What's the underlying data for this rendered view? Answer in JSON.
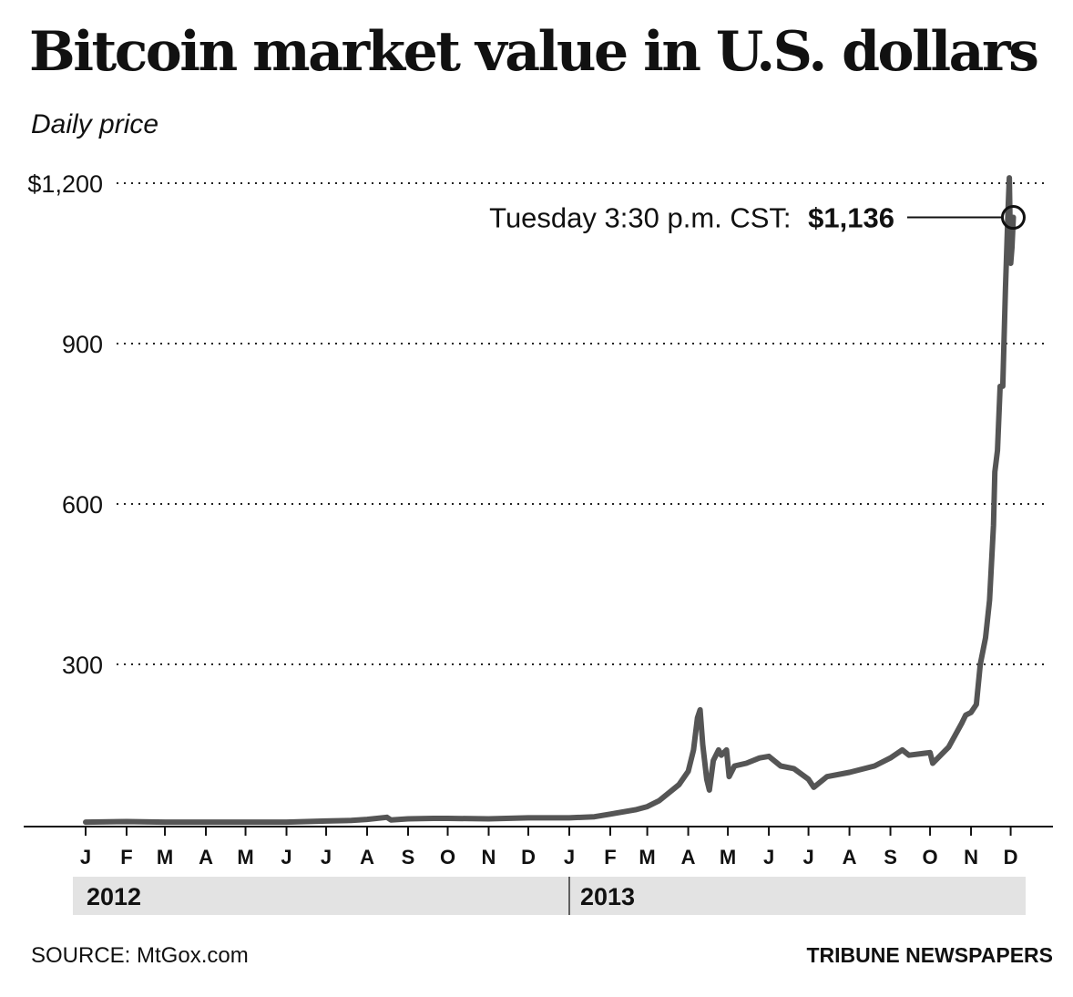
{
  "title": "Bitcoin market value in U.S. dollars",
  "subtitle": "Daily price",
  "source": "SOURCE: MtGox.com",
  "credit": "TRIBUNE NEWSPAPERS",
  "annotation": {
    "label": "Tuesday 3:30 p.m. CST:",
    "value": "$1,136"
  },
  "colors": {
    "line": "#555555",
    "text": "#111111",
    "year_band": "#e3e3e3",
    "grid": "#222222"
  },
  "chart_data": {
    "type": "line",
    "title": "Bitcoin market value in U.S. dollars",
    "subtitle": "Daily price",
    "xlabel": "",
    "ylabel": "",
    "ylim": [
      0,
      1200
    ],
    "yticks": [
      300,
      600,
      900,
      1200
    ],
    "ytick_labels": [
      "300",
      "600",
      "900",
      "$1,200"
    ],
    "grid": "dotted horizontal",
    "legend": "none",
    "xlim": [
      "2012-01-01",
      "2013-12-31"
    ],
    "month_ticks": [
      "2012-01-01",
      "2012-02-01",
      "2012-03-01",
      "2012-04-01",
      "2012-05-01",
      "2012-06-01",
      "2012-07-01",
      "2012-08-01",
      "2012-09-01",
      "2012-10-01",
      "2012-11-01",
      "2012-12-01",
      "2013-01-01",
      "2013-02-01",
      "2013-03-01",
      "2013-04-01",
      "2013-05-01",
      "2013-06-01",
      "2013-07-01",
      "2013-08-01",
      "2013-09-01",
      "2013-10-01",
      "2013-11-01",
      "2013-12-01"
    ],
    "month_labels": [
      "J",
      "F",
      "M",
      "A",
      "M",
      "J",
      "J",
      "A",
      "S",
      "O",
      "N",
      "D",
      "J",
      "F",
      "M",
      "A",
      "M",
      "J",
      "J",
      "A",
      "S",
      "O",
      "N",
      "D"
    ],
    "years": [
      {
        "label": "2012",
        "start": "2012-01-01",
        "end": "2013-01-01"
      },
      {
        "label": "2013",
        "start": "2013-01-01",
        "end": "2013-12-31"
      }
    ],
    "series": [
      {
        "points": [
          [
            "2012-01-01",
            5
          ],
          [
            "2012-02-01",
            6
          ],
          [
            "2012-03-01",
            5
          ],
          [
            "2012-04-01",
            5
          ],
          [
            "2012-05-01",
            5
          ],
          [
            "2012-06-01",
            5
          ],
          [
            "2012-07-01",
            7
          ],
          [
            "2012-07-20",
            8
          ],
          [
            "2012-08-01",
            10
          ],
          [
            "2012-08-16",
            14
          ],
          [
            "2012-08-19",
            9
          ],
          [
            "2012-09-01",
            11
          ],
          [
            "2012-09-20",
            12
          ],
          [
            "2012-10-01",
            12
          ],
          [
            "2012-11-01",
            11
          ],
          [
            "2012-12-01",
            13
          ],
          [
            "2013-01-01",
            13
          ],
          [
            "2013-01-20",
            15
          ],
          [
            "2013-02-01",
            20
          ],
          [
            "2013-02-20",
            28
          ],
          [
            "2013-03-01",
            34
          ],
          [
            "2013-03-10",
            45
          ],
          [
            "2013-03-25",
            75
          ],
          [
            "2013-04-01",
            100
          ],
          [
            "2013-04-05",
            140
          ],
          [
            "2013-04-08",
            200
          ],
          [
            "2013-04-10",
            215
          ],
          [
            "2013-04-12",
            150
          ],
          [
            "2013-04-15",
            85
          ],
          [
            "2013-04-17",
            65
          ],
          [
            "2013-04-20",
            120
          ],
          [
            "2013-04-24",
            140
          ],
          [
            "2013-04-26",
            130
          ],
          [
            "2013-04-30",
            140
          ],
          [
            "2013-05-02",
            90
          ],
          [
            "2013-05-06",
            110
          ],
          [
            "2013-05-15",
            115
          ],
          [
            "2013-05-25",
            125
          ],
          [
            "2013-06-01",
            128
          ],
          [
            "2013-06-10",
            110
          ],
          [
            "2013-06-20",
            105
          ],
          [
            "2013-07-01",
            85
          ],
          [
            "2013-07-05",
            70
          ],
          [
            "2013-07-15",
            90
          ],
          [
            "2013-08-01",
            98
          ],
          [
            "2013-08-20",
            110
          ],
          [
            "2013-09-01",
            125
          ],
          [
            "2013-09-10",
            140
          ],
          [
            "2013-09-15",
            130
          ],
          [
            "2013-10-01",
            135
          ],
          [
            "2013-10-03",
            115
          ],
          [
            "2013-10-15",
            145
          ],
          [
            "2013-10-25",
            190
          ],
          [
            "2013-10-28",
            205
          ],
          [
            "2013-11-01",
            210
          ],
          [
            "2013-11-05",
            225
          ],
          [
            "2013-11-08",
            300
          ],
          [
            "2013-11-12",
            350
          ],
          [
            "2013-11-15",
            420
          ],
          [
            "2013-11-18",
            560
          ],
          [
            "2013-11-19",
            660
          ],
          [
            "2013-11-21",
            700
          ],
          [
            "2013-11-23",
            820
          ],
          [
            "2013-11-25",
            820
          ],
          [
            "2013-11-27",
            1000
          ],
          [
            "2013-11-29",
            1150
          ],
          [
            "2013-11-30",
            1210
          ],
          [
            "2013-12-01",
            1050
          ],
          [
            "2013-12-02",
            1080
          ],
          [
            "2013-12-03",
            1136
          ]
        ]
      }
    ]
  }
}
